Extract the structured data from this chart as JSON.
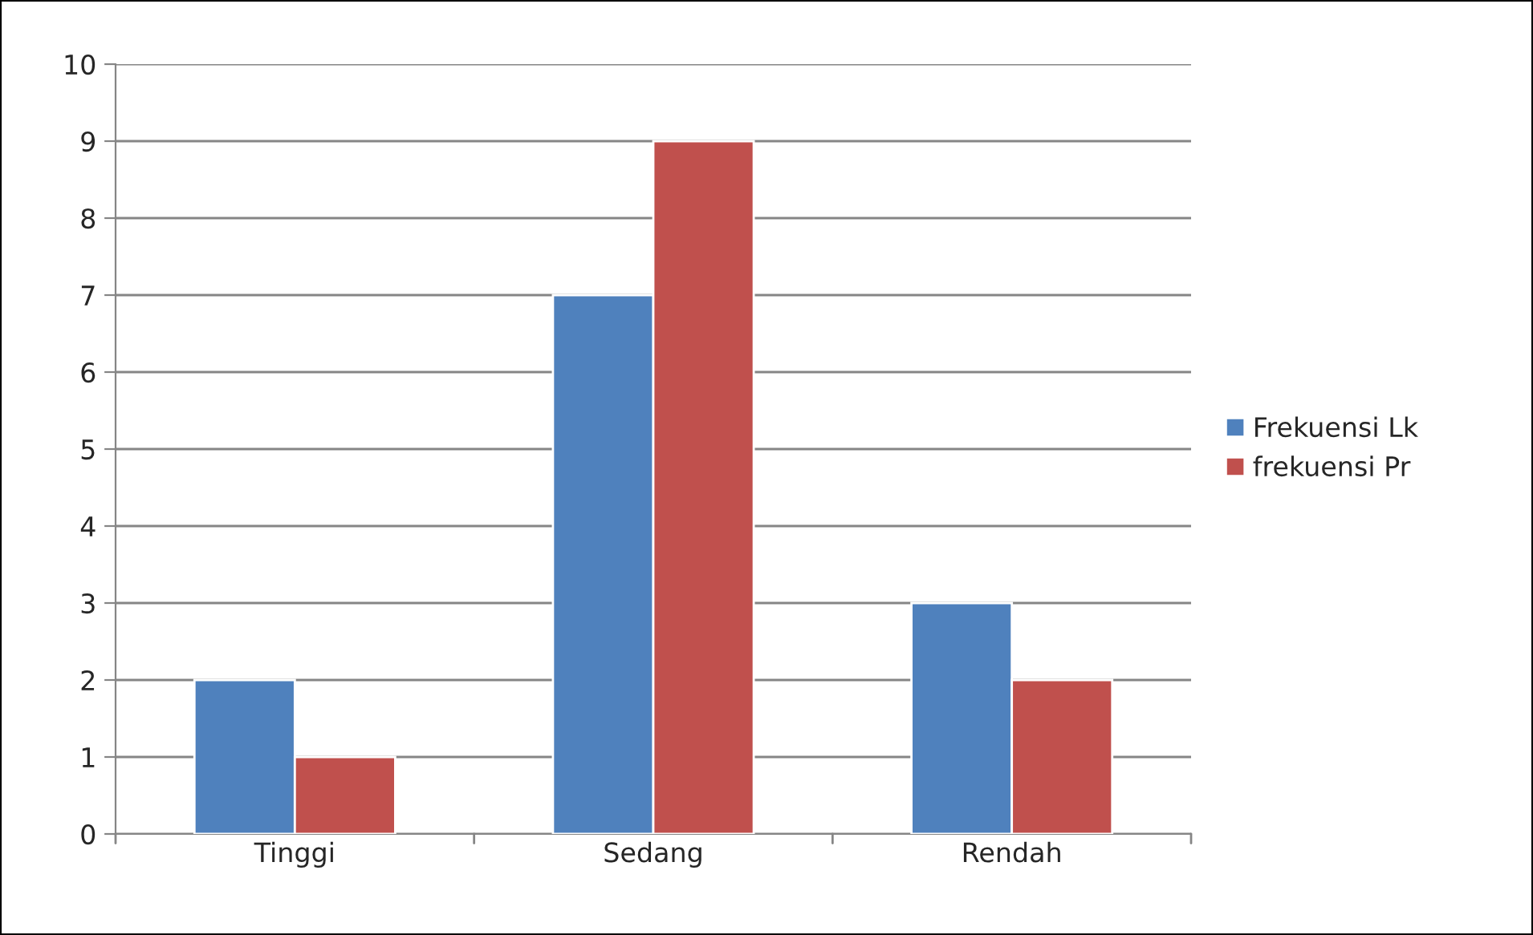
{
  "chart_data": {
    "type": "bar",
    "categories": [
      "Tinggi",
      "Sedang",
      "Rendah"
    ],
    "series": [
      {
        "name": "Frekuensi Lk",
        "color": "#4f81bd",
        "values": [
          2,
          7,
          3
        ]
      },
      {
        "name": "frekuensi Pr",
        "color": "#c0504d",
        "values": [
          1,
          9,
          2
        ]
      }
    ],
    "ylim": [
      0,
      10
    ],
    "yticks": [
      0,
      1,
      2,
      3,
      4,
      5,
      6,
      7,
      8,
      9,
      10
    ],
    "grid": "y",
    "legend": "right"
  }
}
